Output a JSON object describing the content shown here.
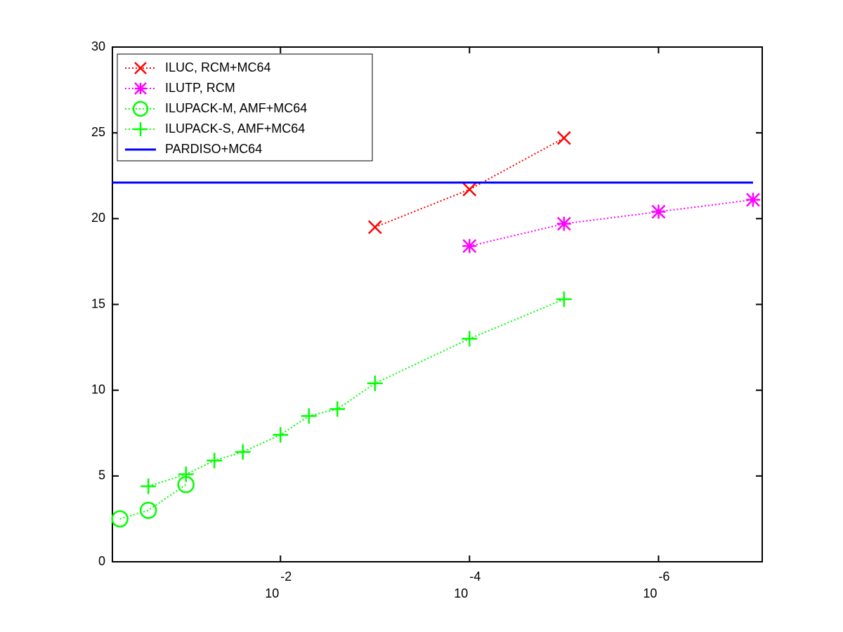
{
  "chart_data": {
    "type": "line",
    "xscale": "log",
    "xlim": [
      0.6,
      8e-08
    ],
    "ylim": [
      0,
      30
    ],
    "yticks": [
      0,
      5,
      10,
      15,
      20,
      25,
      30
    ],
    "xticks": [
      {
        "value": 0.01,
        "base": "10",
        "exponent": "-2"
      },
      {
        "value": 0.0001,
        "base": "10",
        "exponent": "-4"
      },
      {
        "value": 1e-06,
        "base": "10",
        "exponent": "-6"
      }
    ],
    "legend": "upper left",
    "series": [
      {
        "name": "ILUC, RCM+MC64",
        "color": "#ff0000",
        "marker": "x",
        "linestyle": "dotted",
        "x": [
          0.001,
          0.0001,
          1e-05
        ],
        "values": [
          19.5,
          21.7,
          24.7
        ]
      },
      {
        "name": "ILUTP, RCM",
        "color": "#ff00ff",
        "marker": "*",
        "linestyle": "dotted",
        "x": [
          0.0001,
          1e-05,
          1e-06,
          1e-07
        ],
        "values": [
          18.4,
          19.7,
          20.4,
          21.1
        ]
      },
      {
        "name": "ILUPACK-M, AMF+MC64",
        "color": "#00ff00",
        "marker": "o",
        "linestyle": "dotted",
        "x": [
          0.5,
          0.25,
          0.1
        ],
        "values": [
          2.5,
          3.0,
          4.5
        ]
      },
      {
        "name": "ILUPACK-S, AMF+MC64",
        "color": "#00ff00",
        "marker": "+",
        "linestyle": "dotted",
        "x": [
          0.25,
          0.1,
          0.05,
          0.025,
          0.01,
          0.005,
          0.0025,
          0.001,
          0.0001,
          1e-05
        ],
        "values": [
          4.4,
          5.1,
          5.9,
          6.4,
          7.4,
          8.5,
          8.9,
          10.4,
          13.0,
          15.3
        ]
      },
      {
        "name": "PARDISO+MC64",
        "color": "#0000ff",
        "marker": "none",
        "linestyle": "solid",
        "x": [
          0.6,
          1e-07
        ],
        "values": [
          22.1,
          22.1
        ]
      }
    ]
  }
}
